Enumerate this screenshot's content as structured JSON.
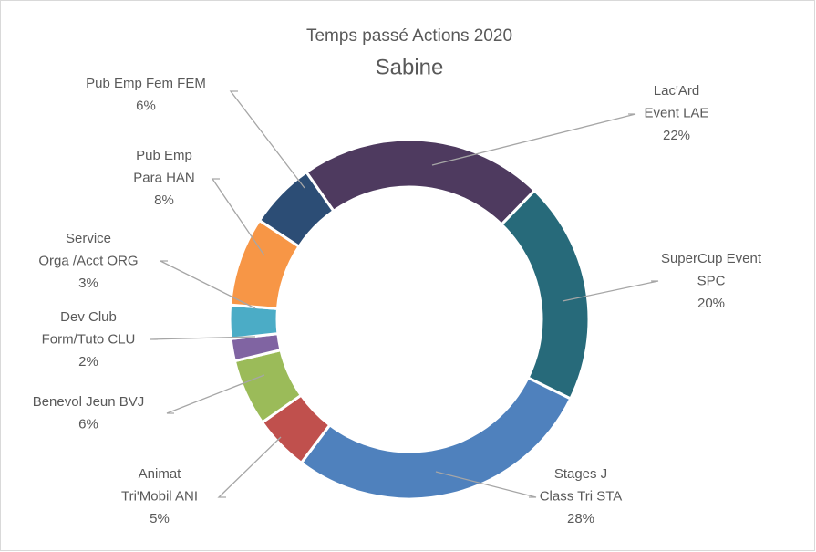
{
  "chart_data": {
    "type": "donut",
    "title": "Temps passé Actions 2020",
    "subtitle": "Sabine",
    "categories": [
      [
        "Lac'Ard",
        "Event LAE"
      ],
      [
        "SuperCup Event",
        "SPC"
      ],
      [
        "Stages J",
        "Class Tri STA"
      ],
      [
        "Animat",
        "Tri'Mobil ANI"
      ],
      [
        "Benevol Jeun BVJ"
      ],
      [
        "Dev Club",
        "Form/Tuto CLU"
      ],
      [
        "Service",
        "Orga /Acct ORG"
      ],
      [
        "Pub Emp",
        "Para HAN"
      ],
      [
        "Pub Emp Fem FEM"
      ]
    ],
    "values": [
      22,
      20,
      28,
      5,
      6,
      2,
      3,
      8,
      6
    ],
    "value_labels": [
      "22%",
      "20%",
      "28%",
      "5%",
      "6%",
      "2%",
      "3%",
      "8%",
      "6%"
    ],
    "colors": [
      "#4e3a5f",
      "#276a7a",
      "#4f81bd",
      "#c0504d",
      "#9bbb59",
      "#8064a2",
      "#4bacc6",
      "#f79646",
      "#2c4d75"
    ]
  }
}
